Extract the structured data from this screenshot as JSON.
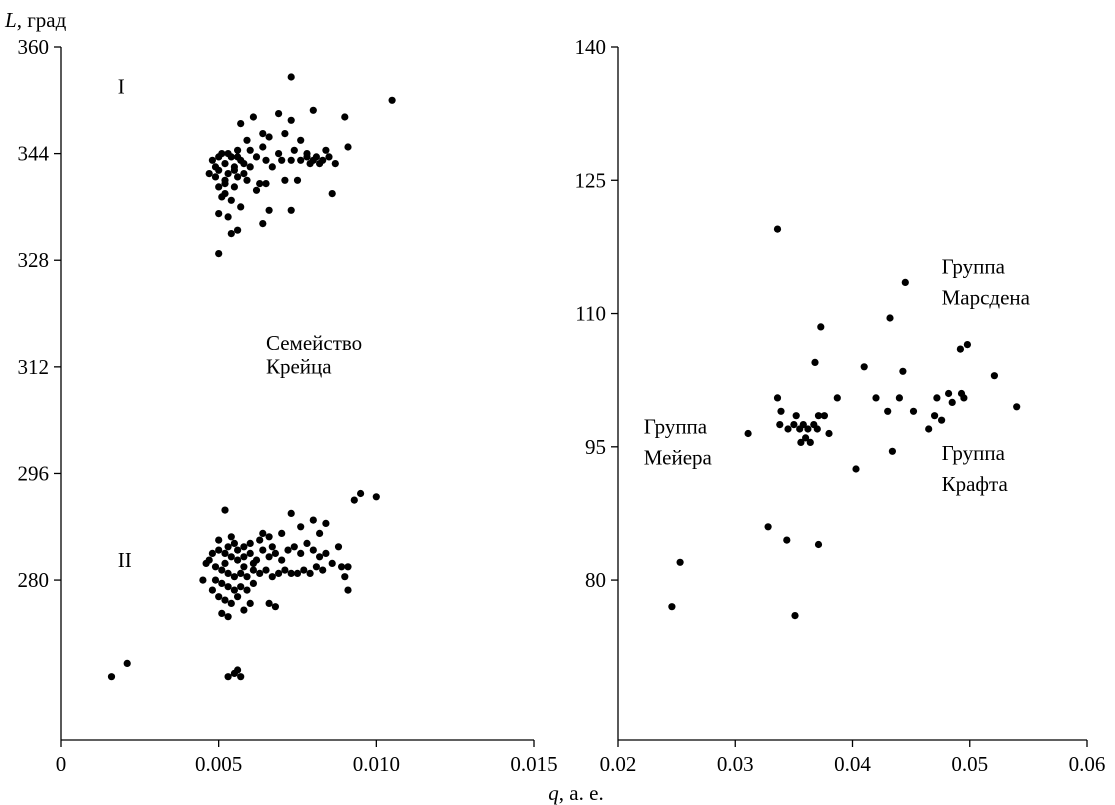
{
  "axis_title": {
    "x_symbol": "q",
    "x_unit": ", а. е.",
    "y_symbol": "L",
    "y_unit": ", град"
  },
  "chart_data": [
    {
      "type": "scatter",
      "panel": "left",
      "xlim": [
        0,
        0.015
      ],
      "ylim": [
        256,
        360
      ],
      "x_ticks": [
        0,
        0.005,
        0.01,
        0.015
      ],
      "x_tick_labels": [
        "0",
        "0.005",
        "0.010",
        "0.015"
      ],
      "y_ticks": [
        280,
        296,
        312,
        328,
        344,
        360
      ],
      "y_tick_labels": [
        "280",
        "296",
        "312",
        "328",
        "344",
        "360"
      ],
      "annotations": [
        {
          "text": "I",
          "x": 0.0018,
          "y": 353
        },
        {
          "text": "II",
          "x": 0.0018,
          "y": 282
        },
        {
          "text": "Семейство",
          "x": 0.0065,
          "y": 314.5
        },
        {
          "text": "Крейца",
          "x": 0.0065,
          "y": 311
        }
      ],
      "series": [
        {
          "values": [
            [
              0.0073,
              355.5
            ],
            [
              0.0105,
              352.0
            ],
            [
              0.008,
              350.5
            ],
            [
              0.009,
              349.5
            ],
            [
              0.0069,
              350.0
            ],
            [
              0.0061,
              349.5
            ],
            [
              0.0057,
              348.5
            ],
            [
              0.0064,
              347.0
            ],
            [
              0.0073,
              349.0
            ],
            [
              0.0071,
              347.0
            ],
            [
              0.0066,
              346.5
            ],
            [
              0.0059,
              346.0
            ],
            [
              0.0076,
              346.0
            ],
            [
              0.0091,
              345.0
            ],
            [
              0.0084,
              344.5
            ],
            [
              0.0078,
              344.0
            ],
            [
              0.0074,
              344.5
            ],
            [
              0.0069,
              344.0
            ],
            [
              0.0064,
              345.0
            ],
            [
              0.006,
              344.5
            ],
            [
              0.0056,
              344.5
            ],
            [
              0.0053,
              344.0
            ],
            [
              0.005,
              343.5
            ],
            [
              0.0048,
              343.0
            ],
            [
              0.0052,
              342.5
            ],
            [
              0.0055,
              342.0
            ],
            [
              0.0058,
              342.5
            ],
            [
              0.006,
              342.0
            ],
            [
              0.0062,
              343.5
            ],
            [
              0.0065,
              343.0
            ],
            [
              0.0067,
              342.0
            ],
            [
              0.007,
              343.0
            ],
            [
              0.0073,
              343.0
            ],
            [
              0.0076,
              343.0
            ],
            [
              0.0079,
              342.5
            ],
            [
              0.0081,
              343.5
            ],
            [
              0.0083,
              343.0
            ],
            [
              0.0085,
              343.5
            ],
            [
              0.0087,
              342.5
            ],
            [
              0.005,
              341.5
            ],
            [
              0.0053,
              341.0
            ],
            [
              0.0056,
              340.5
            ],
            [
              0.0059,
              340.0
            ],
            [
              0.0049,
              340.5
            ],
            [
              0.0052,
              339.5
            ],
            [
              0.0055,
              339.0
            ],
            [
              0.0063,
              339.5
            ],
            [
              0.0065,
              339.5
            ],
            [
              0.0062,
              338.5
            ],
            [
              0.0071,
              340.0
            ],
            [
              0.0075,
              340.0
            ],
            [
              0.0051,
              337.5
            ],
            [
              0.0054,
              337.0
            ],
            [
              0.0057,
              336.0
            ],
            [
              0.0066,
              335.5
            ],
            [
              0.0073,
              335.5
            ],
            [
              0.0086,
              338.0
            ],
            [
              0.005,
              335.0
            ],
            [
              0.0053,
              334.5
            ],
            [
              0.0064,
              333.5
            ],
            [
              0.0056,
              332.5
            ],
            [
              0.0054,
              332.0
            ],
            [
              0.005,
              329.0
            ],
            [
              0.0051,
              344.0
            ],
            [
              0.0054,
              343.5
            ],
            [
              0.0057,
              343.0
            ],
            [
              0.0049,
              342.0
            ],
            [
              0.0052,
              340.0
            ],
            [
              0.0055,
              341.5
            ],
            [
              0.0058,
              341.0
            ],
            [
              0.0052,
              338.0
            ],
            [
              0.005,
              339.0
            ],
            [
              0.0047,
              341.0
            ],
            [
              0.008,
              343.0
            ],
            [
              0.0082,
              342.5
            ],
            [
              0.0078,
              343.5
            ],
            [
              0.0056,
              343.5
            ],
            [
              0.0016,
              265.5
            ],
            [
              0.0021,
              267.5
            ],
            [
              0.0052,
              290.5
            ],
            [
              0.0095,
              293.0
            ],
            [
              0.0093,
              292.0
            ],
            [
              0.01,
              292.5
            ],
            [
              0.0073,
              290.0
            ],
            [
              0.008,
              289.0
            ],
            [
              0.0084,
              288.5
            ],
            [
              0.0076,
              288.0
            ],
            [
              0.0082,
              287.0
            ],
            [
              0.007,
              287.0
            ],
            [
              0.0066,
              286.5
            ],
            [
              0.0063,
              286.0
            ],
            [
              0.006,
              285.5
            ],
            [
              0.0058,
              285.0
            ],
            [
              0.0055,
              285.5
            ],
            [
              0.0053,
              285.0
            ],
            [
              0.005,
              284.5
            ],
            [
              0.0048,
              284.0
            ],
            [
              0.0052,
              284.0
            ],
            [
              0.0054,
              283.5
            ],
            [
              0.0056,
              283.0
            ],
            [
              0.0058,
              283.5
            ],
            [
              0.006,
              284.0
            ],
            [
              0.0062,
              283.0
            ],
            [
              0.0064,
              284.5
            ],
            [
              0.0066,
              283.5
            ],
            [
              0.0068,
              284.0
            ],
            [
              0.007,
              283.0
            ],
            [
              0.0072,
              284.5
            ],
            [
              0.0074,
              285.0
            ],
            [
              0.0076,
              284.0
            ],
            [
              0.0078,
              285.5
            ],
            [
              0.008,
              284.5
            ],
            [
              0.0082,
              283.5
            ],
            [
              0.0084,
              284.0
            ],
            [
              0.0086,
              282.5
            ],
            [
              0.0088,
              285.0
            ],
            [
              0.0089,
              282.0
            ],
            [
              0.0091,
              282.0
            ],
            [
              0.0046,
              282.5
            ],
            [
              0.0049,
              282.0
            ],
            [
              0.0051,
              281.5
            ],
            [
              0.0053,
              281.0
            ],
            [
              0.0055,
              280.5
            ],
            [
              0.0057,
              281.0
            ],
            [
              0.0059,
              280.5
            ],
            [
              0.0061,
              281.5
            ],
            [
              0.0063,
              281.0
            ],
            [
              0.0065,
              281.5
            ],
            [
              0.0067,
              280.5
            ],
            [
              0.0069,
              281.0
            ],
            [
              0.0071,
              281.5
            ],
            [
              0.0073,
              281.0
            ],
            [
              0.0075,
              281.0
            ],
            [
              0.0077,
              281.5
            ],
            [
              0.0079,
              281.0
            ],
            [
              0.0081,
              282.0
            ],
            [
              0.0083,
              281.5
            ],
            [
              0.0049,
              280.0
            ],
            [
              0.0051,
              279.5
            ],
            [
              0.0053,
              279.0
            ],
            [
              0.0055,
              278.5
            ],
            [
              0.0057,
              279.0
            ],
            [
              0.0059,
              278.5
            ],
            [
              0.0061,
              279.5
            ],
            [
              0.0048,
              278.5
            ],
            [
              0.005,
              277.5
            ],
            [
              0.0052,
              277.0
            ],
            [
              0.0054,
              276.5
            ],
            [
              0.0056,
              277.5
            ],
            [
              0.006,
              276.5
            ],
            [
              0.0066,
              276.5
            ],
            [
              0.0068,
              276.0
            ],
            [
              0.0051,
              275.0
            ],
            [
              0.0053,
              274.5
            ],
            [
              0.0058,
              275.5
            ],
            [
              0.0091,
              278.5
            ],
            [
              0.009,
              280.5
            ],
            [
              0.0045,
              280.0
            ],
            [
              0.0047,
              283.0
            ],
            [
              0.005,
              286.0
            ],
            [
              0.0052,
              282.5
            ],
            [
              0.0054,
              286.5
            ],
            [
              0.0056,
              284.5
            ],
            [
              0.0058,
              282.0
            ],
            [
              0.0061,
              282.5
            ],
            [
              0.0064,
              287.0
            ],
            [
              0.0067,
              285.0
            ],
            [
              0.0055,
              266.0
            ],
            [
              0.0057,
              265.5
            ],
            [
              0.0053,
              265.5
            ],
            [
              0.0056,
              266.5
            ]
          ]
        }
      ]
    },
    {
      "type": "scatter",
      "panel": "right",
      "xlim": [
        0.02,
        0.06
      ],
      "ylim": [
        62,
        140
      ],
      "x_ticks": [
        0.02,
        0.03,
        0.04,
        0.05,
        0.06
      ],
      "x_tick_labels": [
        "0.02",
        "0.03",
        "0.04",
        "0.05",
        "0.06"
      ],
      "y_ticks": [
        80,
        95,
        110,
        125,
        140
      ],
      "y_tick_labels": [
        "80",
        "95",
        "110",
        "125",
        "140"
      ],
      "annotations": [
        {
          "text": "Группа",
          "x": 0.0222,
          "y": 96.5
        },
        {
          "text": "Мейера",
          "x": 0.0222,
          "y": 93.0
        },
        {
          "text": "Группа",
          "x": 0.0476,
          "y": 114.5
        },
        {
          "text": "Марсдена",
          "x": 0.0476,
          "y": 111.0
        },
        {
          "text": "Группа",
          "x": 0.0476,
          "y": 93.5
        },
        {
          "text": "Крафта",
          "x": 0.0476,
          "y": 90.0
        }
      ],
      "series": [
        {
          "values": [
            [
              0.0336,
              119.5
            ],
            [
              0.0445,
              113.5
            ],
            [
              0.0432,
              109.5
            ],
            [
              0.0373,
              108.5
            ],
            [
              0.0498,
              106.5
            ],
            [
              0.0492,
              106.0
            ],
            [
              0.0368,
              104.5
            ],
            [
              0.041,
              104.0
            ],
            [
              0.0443,
              103.5
            ],
            [
              0.0521,
              103.0
            ],
            [
              0.0336,
              100.5
            ],
            [
              0.0387,
              100.5
            ],
            [
              0.042,
              100.5
            ],
            [
              0.044,
              100.5
            ],
            [
              0.0472,
              100.5
            ],
            [
              0.0482,
              101.0
            ],
            [
              0.0493,
              101.0
            ],
            [
              0.0485,
              100.0
            ],
            [
              0.054,
              99.5
            ],
            [
              0.043,
              99.0
            ],
            [
              0.0452,
              99.0
            ],
            [
              0.047,
              98.5
            ],
            [
              0.0476,
              98.0
            ],
            [
              0.0339,
              99.0
            ],
            [
              0.0352,
              98.5
            ],
            [
              0.0371,
              98.5
            ],
            [
              0.0376,
              98.5
            ],
            [
              0.0338,
              97.5
            ],
            [
              0.0345,
              97.0
            ],
            [
              0.035,
              97.5
            ],
            [
              0.0355,
              97.0
            ],
            [
              0.0358,
              97.5
            ],
            [
              0.0362,
              97.0
            ],
            [
              0.0367,
              97.5
            ],
            [
              0.037,
              97.0
            ],
            [
              0.038,
              96.5
            ],
            [
              0.036,
              96.0
            ],
            [
              0.0356,
              95.5
            ],
            [
              0.0364,
              95.5
            ],
            [
              0.0311,
              96.5
            ],
            [
              0.0465,
              97.0
            ],
            [
              0.0434,
              94.5
            ],
            [
              0.0403,
              92.5
            ],
            [
              0.0328,
              86.0
            ],
            [
              0.0344,
              84.5
            ],
            [
              0.0371,
              84.0
            ],
            [
              0.0253,
              82.0
            ],
            [
              0.0246,
              77.0
            ],
            [
              0.0351,
              76.0
            ],
            [
              0.0495,
              100.5
            ]
          ]
        }
      ]
    }
  ]
}
